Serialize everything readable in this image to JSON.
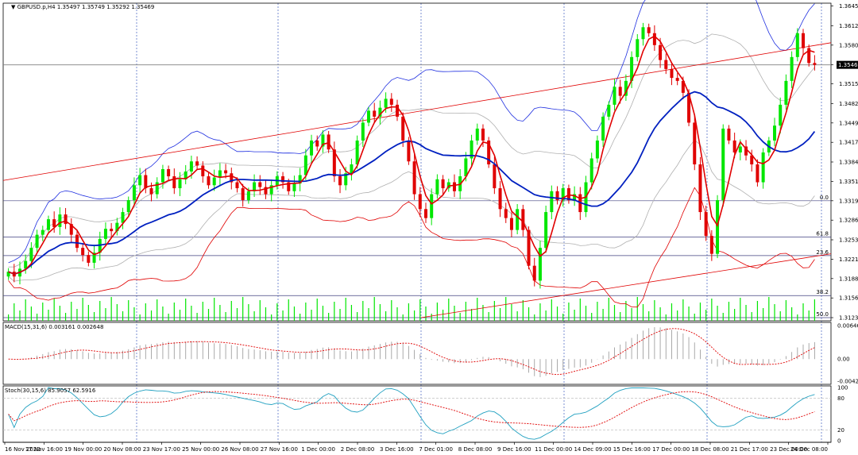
{
  "window": {
    "title": "GBPUSD.p,H4",
    "ohlc": "1.35497 1.35749 1.35292 1.35469"
  },
  "current_price": "1.35469",
  "colors": {
    "background": "#ffffff",
    "bull_candle": "#00e600",
    "bear_candle": "#e00000",
    "ma_fast": "#e00000",
    "ma_slow": "#0020c0",
    "bb_outer_upper": "#2030e0",
    "bb_outer_lower": "#e00000",
    "bb_inner": "#b0b0b0",
    "trendline": "#e00000",
    "grid_vertical": "#4060c0",
    "macd_signal": "#e00000",
    "stoch_main": "#20a0c0",
    "stoch_signal": "#e00000",
    "volume": "#00e600"
  },
  "chart_data": [
    {
      "type": "candlestick",
      "panel": "main",
      "symbol": "GBPUSD.p",
      "timeframe": "H4",
      "y_ticks": [
        "1.36455",
        "1.36125",
        "1.35800",
        "1.35469",
        "1.35150",
        "1.34820",
        "1.34495",
        "1.34170",
        "1.33840",
        "1.33515",
        "1.33190",
        "1.32865",
        "1.32535",
        "1.32210",
        "1.31885",
        "1.31560",
        "1.31230"
      ],
      "ylim": [
        1.3123,
        1.3645
      ],
      "x_ticks": [
        "16 Nov 2020",
        "17 Nov 16:00",
        "19 Nov 00:00",
        "20 Nov 08:00",
        "23 Nov 17:00",
        "25 Nov 00:00",
        "26 Nov 08:00",
        "27 Nov 16:00",
        "1 Dec 00:00",
        "2 Dec 08:00",
        "3 Dec 16:00",
        "7 Dec 01:00",
        "8 Dec 08:00",
        "9 Dec 16:00",
        "11 Dec 00:00",
        "14 Dec 09:00",
        "15 Dec 16:00",
        "17 Dec 00:00",
        "18 Dec 08:00",
        "21 Dec 17:00",
        "23 Dec 00:00",
        "24 Dec 08:00"
      ],
      "fib_levels": [
        {
          "label": "0.0",
          "price": 1.3319
        },
        {
          "label": "61.8",
          "price": 1.3258
        },
        {
          "label": "23.6",
          "price": 1.3227
        },
        {
          "label": "38.2",
          "price": 1.316
        },
        {
          "label": "50.0",
          "price": 1.3123
        }
      ],
      "closes": [
        1.32,
        1.3192,
        1.3205,
        1.3218,
        1.324,
        1.3262,
        1.327,
        1.3288,
        1.3275,
        1.3296,
        1.328,
        1.3262,
        1.324,
        1.3228,
        1.3215,
        1.3232,
        1.3255,
        1.3272,
        1.3268,
        1.3282,
        1.33,
        1.332,
        1.3345,
        1.3362,
        1.334,
        1.333,
        1.335,
        1.3372,
        1.336,
        1.334,
        1.3355,
        1.3368,
        1.3385,
        1.3378,
        1.336,
        1.3345,
        1.3358,
        1.337,
        1.3365,
        1.335,
        1.334,
        1.332,
        1.3335,
        1.335,
        1.3342,
        1.333,
        1.3345,
        1.336,
        1.335,
        1.3335,
        1.3348,
        1.3362,
        1.3395,
        1.342,
        1.341,
        1.343,
        1.3405,
        1.336,
        1.3345,
        1.3365,
        1.338,
        1.342,
        1.345,
        1.347,
        1.346,
        1.3475,
        1.349,
        1.348,
        1.346,
        1.342,
        1.3385,
        1.333,
        1.3305,
        1.329,
        1.333,
        1.3355,
        1.334,
        1.335,
        1.3335,
        1.336,
        1.339,
        1.342,
        1.344,
        1.342,
        1.338,
        1.334,
        1.3305,
        1.329,
        1.327,
        1.3305,
        1.327,
        1.321,
        1.3185,
        1.324,
        1.33,
        1.3335,
        1.332,
        1.334,
        1.332,
        1.333,
        1.33,
        1.335,
        1.339,
        1.342,
        1.346,
        1.348,
        1.351,
        1.3495,
        1.352,
        1.356,
        1.359,
        1.361,
        1.36,
        1.358,
        1.3555,
        1.354,
        1.3525,
        1.352,
        1.35,
        1.345,
        1.338,
        1.33,
        1.326,
        1.323,
        1.332,
        1.344,
        1.342,
        1.34,
        1.341,
        1.3395,
        1.338,
        1.335,
        1.34,
        1.342,
        1.3445,
        1.348,
        1.352,
        1.356,
        1.36,
        1.3575,
        1.355,
        1.3547
      ],
      "title": ""
    },
    {
      "type": "line",
      "panel": "MACD",
      "label": "MACD(15,31,6) 0.003161 0.002648",
      "y_ticks": [
        "0.006467",
        "0.00",
        "-0.00425"
      ],
      "ylim": [
        -0.00425,
        0.006467
      ]
    },
    {
      "type": "line",
      "panel": "Stoch",
      "label": "Stoch(30,15,6) 85.9057 62.5916",
      "y_ticks": [
        "100",
        "80",
        "20",
        "0"
      ],
      "ylim": [
        0,
        100
      ]
    }
  ]
}
